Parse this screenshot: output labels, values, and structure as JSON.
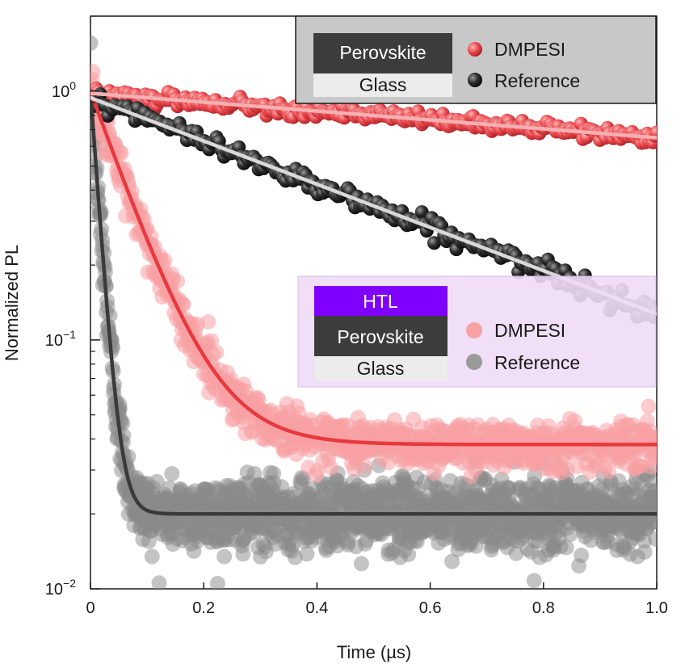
{
  "chart_data": {
    "type": "scatter",
    "xlabel": "Time (µs)",
    "ylabel": "Normalized PL",
    "xlim": [
      0,
      1.0
    ],
    "ylim": [
      0.01,
      2.0
    ],
    "yscale": "log",
    "xticks": [
      {
        "value": 0,
        "label": "0"
      },
      {
        "value": 0.2,
        "label": "0.2"
      },
      {
        "value": 0.4,
        "label": "0.4"
      },
      {
        "value": 0.6,
        "label": "0.6"
      },
      {
        "value": 0.8,
        "label": "0.8"
      },
      {
        "value": 1.0,
        "label": "1.0"
      }
    ],
    "yticks": [
      {
        "value": 1,
        "base": "10",
        "exp": "0"
      },
      {
        "value": 0.1,
        "base": "10",
        "exp": "−1"
      },
      {
        "value": 0.01,
        "base": "10",
        "exp": "−2"
      }
    ],
    "series": [
      {
        "name": "DMPESI",
        "sample": "Perovskite/Glass",
        "marker_color": "#e8474c",
        "fit_color": "#f4b0b2",
        "amplitude": 0.98,
        "decay_us": 2.43,
        "offset": 0,
        "noise": 0.03,
        "points": 300
      },
      {
        "name": "Reference",
        "sample": "Perovskite/Glass",
        "marker_color": "#2a2a2a",
        "fit_color": "#d9d9d9",
        "amplitude": 0.94,
        "decay_us": 0.5,
        "offset": 0,
        "noise": 0.045,
        "points": 230
      },
      {
        "name": "DMPESI",
        "sample": "HTL/Perovskite/Glass",
        "marker_color": "#f7a1a4",
        "fit_color": "#e8393e",
        "amplitude": 0.96,
        "decay_us": 0.067,
        "offset": 0.038,
        "noise": 0.11,
        "points": 900
      },
      {
        "name": "Reference",
        "sample": "HTL/Perovskite/Glass",
        "marker_color": "#8a8a8a",
        "fit_color": "#3a3a3a",
        "amplitude": 0.98,
        "decay_us": 0.0137,
        "offset": 0.02,
        "noise": 0.16,
        "points": 1600
      }
    ]
  },
  "legend_top": {
    "layers": [
      "Perovskite",
      "Glass"
    ],
    "entries": [
      {
        "label": "DMPESI",
        "color": "#e8474c"
      },
      {
        "label": "Reference",
        "color": "#2a2a2a"
      }
    ],
    "background": "#c8c8c8"
  },
  "legend_bottom": {
    "layers": [
      "HTL",
      "Perovskite",
      "Glass"
    ],
    "entries": [
      {
        "label": "DMPESI",
        "color": "#f7a1a4"
      },
      {
        "label": "Reference",
        "color": "#9a9a9a"
      }
    ],
    "background": "#eedcf5",
    "htl_color": "#7f00ff"
  }
}
